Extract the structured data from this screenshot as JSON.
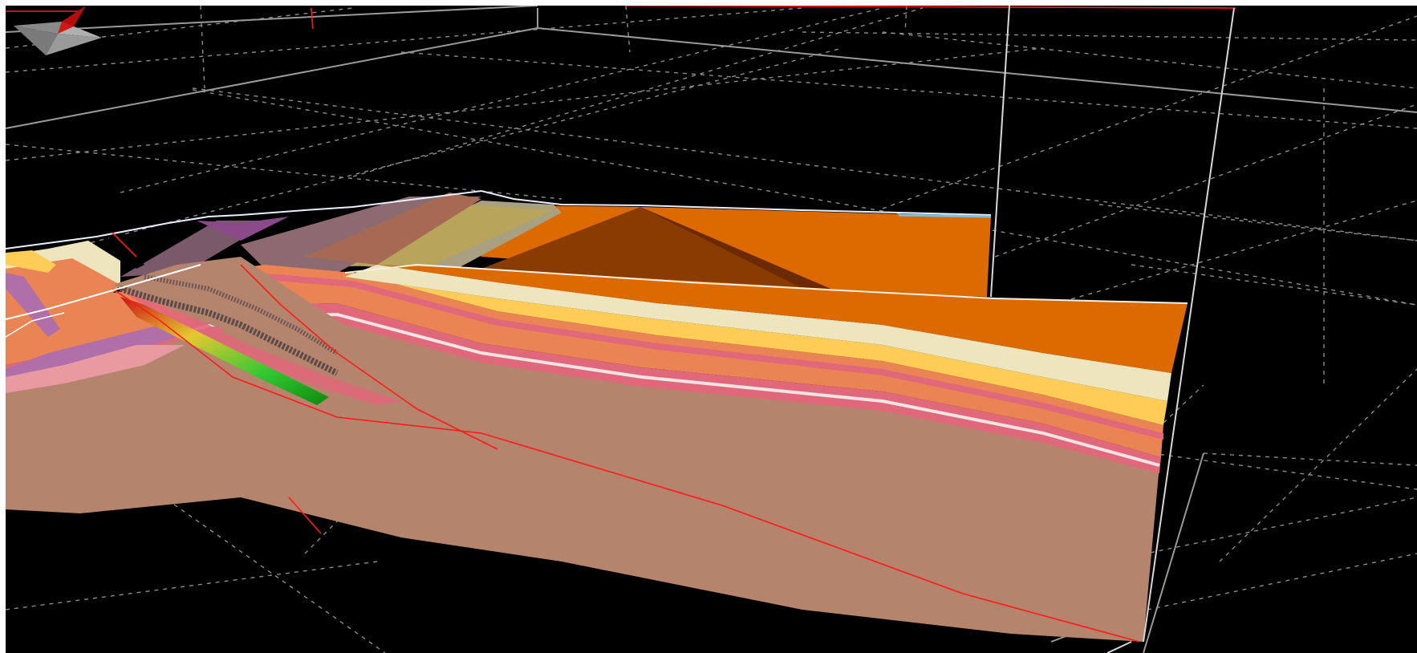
{
  "viewport": {
    "background": "#000000",
    "grid_color": "#9a9a9a",
    "bounding_box_color": "#d8d8d8",
    "fault_color": "#ff1a1a"
  },
  "model": {
    "layers": [
      {
        "id": "basement",
        "color": "#b5846c"
      },
      {
        "id": "pink-marker",
        "color": "#e0687a"
      },
      {
        "id": "white-marker",
        "color": "#f5e4e4"
      },
      {
        "id": "mauve-unit",
        "color": "#b06fa8"
      },
      {
        "id": "salmon-unit",
        "color": "#ea8455"
      },
      {
        "id": "yellow-unit",
        "color": "#ffcc55"
      },
      {
        "id": "cream-unit",
        "color": "#ede5bd"
      },
      {
        "id": "orange-cover",
        "color": "#dd6a00"
      },
      {
        "id": "fault-plane-green",
        "color": "#32c832"
      },
      {
        "id": "fault-plane-red",
        "color": "#c81414"
      }
    ]
  },
  "navigation": {
    "compass_icon": "compass-rose-icon",
    "north_color": "#b50d0d",
    "body_color": "#9a9a9a"
  }
}
